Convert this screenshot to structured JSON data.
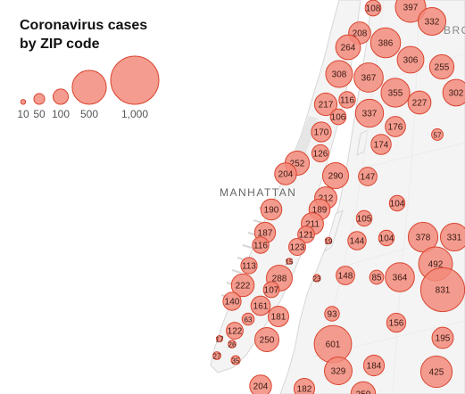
{
  "legend": {
    "title_line1": "Coronavirus cases",
    "title_line2": "by ZIP code",
    "sizes": [
      {
        "label": "10",
        "value": 10
      },
      {
        "label": "50",
        "value": 50
      },
      {
        "label": "100",
        "value": 100
      },
      {
        "label": "500",
        "value": 500
      },
      {
        "label": "1,000",
        "value": 1000
      }
    ]
  },
  "labels": {
    "manhattan": "MANHATTAN",
    "brooklyn_partial": "BRO"
  },
  "colors": {
    "bubble_fill": "#f28b7b",
    "bubble_stroke": "#d9442f",
    "land": "#f4f4f4",
    "water": "#ffffff",
    "park": "#e9e9e9"
  },
  "zip_bubbles": [
    {
      "value": 108,
      "label": "108"
    },
    {
      "value": 397,
      "label": "397"
    },
    {
      "value": 332,
      "label": "332"
    },
    {
      "value": 208,
      "label": "208"
    },
    {
      "value": 264,
      "label": "264"
    },
    {
      "value": 386,
      "label": "386"
    },
    {
      "value": 306,
      "label": "306"
    },
    {
      "value": 255,
      "label": "255"
    },
    {
      "value": 308,
      "label": "308"
    },
    {
      "value": 367,
      "label": "367"
    },
    {
      "value": 355,
      "label": "355"
    },
    {
      "value": 227,
      "label": "227"
    },
    {
      "value": 302,
      "label": "302"
    },
    {
      "value": 217,
      "label": "217"
    },
    {
      "value": 116,
      "label": "116"
    },
    {
      "value": 106,
      "label": "106"
    },
    {
      "value": 337,
      "label": "337"
    },
    {
      "value": 176,
      "label": "176"
    },
    {
      "value": 170,
      "label": "170"
    },
    {
      "value": 57,
      "label": "57"
    },
    {
      "value": 174,
      "label": "174"
    },
    {
      "value": 126,
      "label": "126"
    },
    {
      "value": 252,
      "label": "252"
    },
    {
      "value": 204,
      "label": "204"
    },
    {
      "value": 290,
      "label": "290"
    },
    {
      "value": 147,
      "label": "147"
    },
    {
      "value": 212,
      "label": "212"
    },
    {
      "value": 104,
      "label": "104"
    },
    {
      "value": 190,
      "label": "190"
    },
    {
      "value": 189,
      "label": "189"
    },
    {
      "value": 211,
      "label": "211"
    },
    {
      "value": 105,
      "label": "105"
    },
    {
      "value": 187,
      "label": "187"
    },
    {
      "value": 121,
      "label": "121"
    },
    {
      "value": 19,
      "label": "19"
    },
    {
      "value": 144,
      "label": "144"
    },
    {
      "value": 104,
      "label": "104"
    },
    {
      "value": 378,
      "label": "378"
    },
    {
      "value": 331,
      "label": "331"
    },
    {
      "value": 116,
      "label": "116"
    },
    {
      "value": 123,
      "label": "123"
    },
    {
      "value": 15,
      "label": "15"
    },
    {
      "value": 492,
      "label": "492"
    },
    {
      "value": 113,
      "label": "113"
    },
    {
      "value": 288,
      "label": "288"
    },
    {
      "value": 148,
      "label": "148"
    },
    {
      "value": 85,
      "label": "85"
    },
    {
      "value": 364,
      "label": "364"
    },
    {
      "value": 23,
      "label": "23"
    },
    {
      "value": 222,
      "label": "222"
    },
    {
      "value": 107,
      "label": "107"
    },
    {
      "value": 831,
      "label": "831"
    },
    {
      "value": 140,
      "label": "140"
    },
    {
      "value": 161,
      "label": "161"
    },
    {
      "value": 181,
      "label": "181"
    },
    {
      "value": 93,
      "label": "93"
    },
    {
      "value": 63,
      "label": "63"
    },
    {
      "value": 156,
      "label": "156"
    },
    {
      "value": 122,
      "label": "122"
    },
    {
      "value": 601,
      "label": "601"
    },
    {
      "value": 195,
      "label": "195"
    },
    {
      "value": 250,
      "label": "250"
    },
    {
      "value": 17,
      "label": "17"
    },
    {
      "value": 26,
      "label": "26"
    },
    {
      "value": 27,
      "label": "27"
    },
    {
      "value": 35,
      "label": "35"
    },
    {
      "value": 329,
      "label": "329"
    },
    {
      "value": 184,
      "label": "184"
    },
    {
      "value": 425,
      "label": "425"
    },
    {
      "value": 204,
      "label": "204"
    },
    {
      "value": 182,
      "label": "182"
    },
    {
      "value": 259,
      "label": "259"
    }
  ]
}
